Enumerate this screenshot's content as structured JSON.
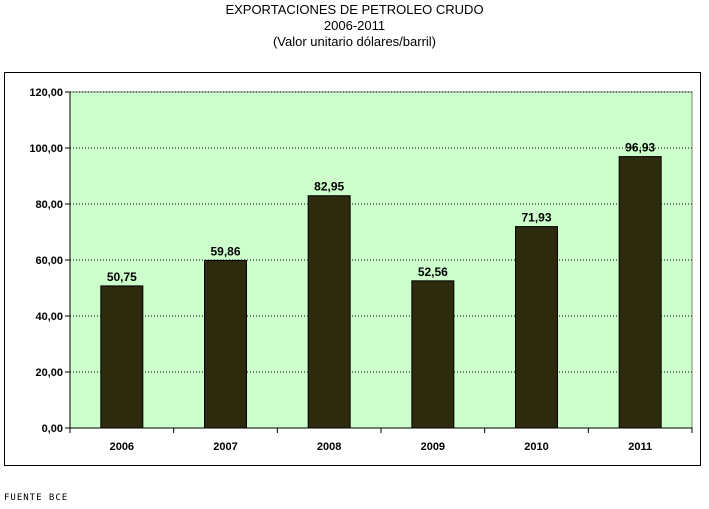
{
  "chart_data": {
    "type": "bar",
    "title": "EXPORTACIONES DE PETROLEO CRUDO",
    "subtitle": "2006-2011",
    "subtitle2": "(Valor unitario dólares/barril)",
    "categories": [
      "2006",
      "2007",
      "2008",
      "2009",
      "2010",
      "2011"
    ],
    "values": [
      50.75,
      59.86,
      82.95,
      52.56,
      71.93,
      96.93
    ],
    "value_labels": [
      "50,75",
      "59,86",
      "82,95",
      "52,56",
      "71,93",
      "96,93"
    ],
    "ylim": [
      0,
      120
    ],
    "yticks": [
      0,
      20,
      40,
      60,
      80,
      100,
      120
    ],
    "ytick_labels": [
      "0,00",
      "20,00",
      "40,00",
      "60,00",
      "80,00",
      "100,00",
      "120,00"
    ],
    "grid": true,
    "legend": "none",
    "colors": {
      "bar": "#2e2a0e",
      "plot_background": "#ccffcc",
      "grid": "#000000"
    }
  },
  "source": "FUENTE BCE"
}
